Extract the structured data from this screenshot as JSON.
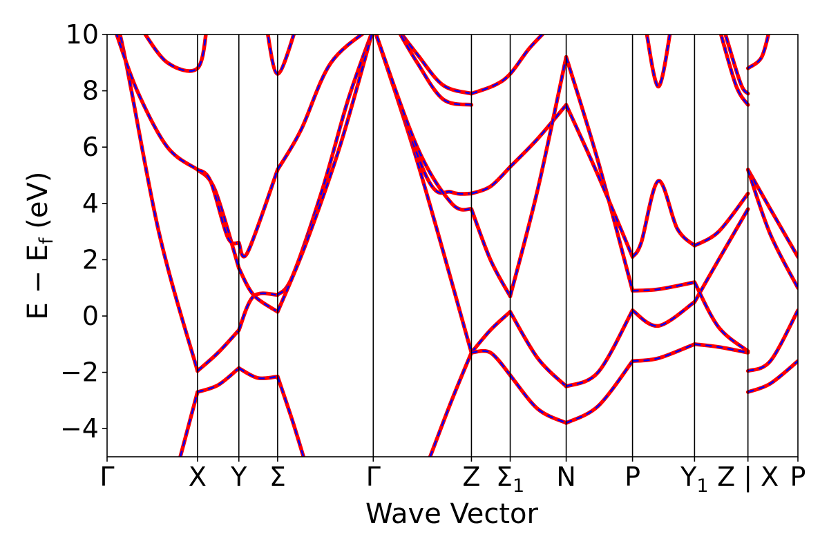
{
  "chart_data": {
    "type": "line",
    "title": "",
    "xlabel": "Wave Vector",
    "ylabel": "E − E_f (eV)",
    "ylabel_parts": {
      "main": "E − E",
      "sub": "f",
      "unit": " (eV)"
    },
    "ylim": [
      -5,
      10
    ],
    "xlim": [
      0,
      8.02
    ],
    "yticks": [
      -4,
      -2,
      0,
      2,
      4,
      6,
      8,
      10
    ],
    "ytick_labels": [
      "−4",
      "−2",
      "0",
      "2",
      "4",
      "6",
      "8",
      "10"
    ],
    "grid": false,
    "legend": "none",
    "kpoints": [
      {
        "label": "Γ",
        "x": 0
      },
      {
        "label": "X",
        "x": 1.05
      },
      {
        "label": "Y",
        "x": 1.53
      },
      {
        "label": "Σ",
        "x": 1.98
      },
      {
        "label": "Γ",
        "x": 3.09
      },
      {
        "label": "Z",
        "x": 4.23
      },
      {
        "label": "Σ",
        "sub": "1",
        "x": 4.68
      },
      {
        "label": "N",
        "x": 5.33
      },
      {
        "label": "P",
        "x": 6.1
      },
      {
        "label": "Y",
        "sub": "1",
        "x": 6.82
      },
      {
        "label": "Z | X",
        "x": 7.44
      },
      {
        "label": "P",
        "x": 8.02
      }
    ],
    "colors": {
      "dft": "#ff0000",
      "fit": "#0000ff",
      "frame": "#000000"
    },
    "series": [
      {
        "x": [
          0,
          0.15,
          0.6,
          1.05
        ],
        "y": [
          10.3,
          10,
          3,
          -1.95
        ]
      },
      {
        "x": [
          1.05,
          1.29,
          1.53
        ],
        "y": [
          -1.95,
          -1.3,
          -0.5
        ]
      },
      {
        "x": [
          1.53,
          1.7,
          1.98
        ],
        "y": [
          -0.5,
          0.7,
          0.75
        ]
      },
      {
        "x": [
          1.98,
          2.15,
          2.5,
          2.8,
          3.09
        ],
        "y": [
          0.75,
          1.4,
          4.5,
          7.7,
          10.2
        ]
      },
      {
        "x": [
          0.85,
          1.05
        ],
        "y": [
          -5,
          -2.7
        ]
      },
      {
        "x": [
          1.05,
          1.29,
          1.53
        ],
        "y": [
          -2.7,
          -2.45,
          -1.85
        ]
      },
      {
        "x": [
          1.53,
          1.75,
          1.98
        ],
        "y": [
          -1.85,
          -2.2,
          -2.15
        ]
      },
      {
        "x": [
          1.98,
          2.15,
          2.28
        ],
        "y": [
          -2.15,
          -3.7,
          -5
        ]
      },
      {
        "x": [
          0.1,
          0.35,
          0.7,
          1.05
        ],
        "y": [
          10.1,
          8,
          6,
          5.2
        ]
      },
      {
        "x": [
          1.05,
          1.25,
          1.53
        ],
        "y": [
          5.2,
          4.5,
          1.7
        ]
      },
      {
        "x": [
          1.53,
          1.7,
          1.98
        ],
        "y": [
          1.7,
          0.75,
          0.15
        ]
      },
      {
        "x": [
          1.98,
          2.3,
          2.7,
          3.09
        ],
        "y": [
          0.15,
          2.5,
          6,
          10.2
        ]
      },
      {
        "x": [
          1.05,
          1.2,
          1.4,
          1.53
        ],
        "y": [
          5.2,
          4.8,
          2.8,
          2.6
        ]
      },
      {
        "x": [
          1.53,
          1.63,
          1.98
        ],
        "y": [
          2.6,
          2.25,
          5.2
        ]
      },
      {
        "x": [
          1.98,
          2.25,
          2.6,
          3.09
        ],
        "y": [
          5.2,
          6.6,
          9,
          10.3
        ]
      },
      {
        "x": [
          0.4,
          0.7,
          1.05,
          1.16
        ],
        "y": [
          10.2,
          9,
          8.8,
          10.3
        ]
      },
      {
        "x": [
          1.85,
          1.98,
          2.2
        ],
        "y": [
          10.3,
          8.6,
          10.3
        ]
      },
      {
        "x": [
          3.09,
          3.6,
          4.23
        ],
        "y": [
          10.3,
          5.5,
          -1.3
        ]
      },
      {
        "x": [
          3.09,
          3.7,
          4.0,
          4.23
        ],
        "y": [
          10.3,
          5.0,
          4.4,
          4.35
        ]
      },
      {
        "x": [
          4.23,
          4.45,
          4.68
        ],
        "y": [
          4.35,
          4.6,
          5.3
        ]
      },
      {
        "x": [
          4.68,
          5.0,
          5.33
        ],
        "y": [
          5.3,
          6.3,
          7.5
        ]
      },
      {
        "x": [
          3.09,
          3.6,
          4.0,
          4.23
        ],
        "y": [
          10.3,
          6.0,
          4.0,
          3.8
        ]
      },
      {
        "x": [
          4.23,
          4.45,
          4.68
        ],
        "y": [
          3.8,
          2.0,
          0.7
        ]
      },
      {
        "x": [
          4.68,
          5.0,
          5.33
        ],
        "y": [
          0.7,
          4.5,
          9.2
        ]
      },
      {
        "x": [
          3.35,
          3.6,
          3.9,
          4.23
        ],
        "y": [
          10.3,
          9.3,
          8.2,
          7.9
        ]
      },
      {
        "x": [
          3.35,
          3.6,
          3.9,
          4.23
        ],
        "y": [
          10.3,
          9.0,
          7.7,
          7.5
        ]
      },
      {
        "x": [
          4.23,
          4.5,
          4.68,
          4.9,
          5.15
        ],
        "y": [
          7.9,
          8.2,
          8.6,
          9.5,
          10.3
        ]
      },
      {
        "x": [
          3.75,
          4.0,
          4.23
        ],
        "y": [
          -5,
          -3,
          -1.3
        ]
      },
      {
        "x": [
          4.23,
          4.45,
          4.68
        ],
        "y": [
          -1.3,
          -0.5,
          0.15
        ]
      },
      {
        "x": [
          4.68,
          5.0,
          5.33
        ],
        "y": [
          0.15,
          -1.5,
          -2.5
        ]
      },
      {
        "x": [
          5.33,
          5.7,
          6.1
        ],
        "y": [
          -2.5,
          -2.0,
          0.2
        ]
      },
      {
        "x": [
          4.23,
          4.45,
          4.68
        ],
        "y": [
          -1.3,
          -1.3,
          -2.1
        ]
      },
      {
        "x": [
          4.68,
          5.0,
          5.33
        ],
        "y": [
          -2.1,
          -3.3,
          -3.8
        ]
      },
      {
        "x": [
          5.33,
          5.7,
          6.1
        ],
        "y": [
          -3.8,
          -3.2,
          -1.6
        ]
      },
      {
        "x": [
          5.33,
          5.7,
          6.1
        ],
        "y": [
          9.2,
          5.5,
          0.9
        ]
      },
      {
        "x": [
          5.33,
          5.7,
          6.1
        ],
        "y": [
          7.5,
          5.0,
          2.1
        ]
      },
      {
        "x": [
          6.1,
          6.2,
          6.4,
          6.62,
          6.82
        ],
        "y": [
          2.1,
          2.6,
          4.8,
          3.1,
          2.5
        ]
      },
      {
        "x": [
          6.1,
          6.4,
          6.82
        ],
        "y": [
          0.2,
          -0.35,
          0.5
        ]
      },
      {
        "x": [
          6.1,
          6.4,
          6.82
        ],
        "y": [
          0.9,
          0.95,
          1.2
        ]
      },
      {
        "x": [
          6.82,
          7.1,
          7.44
        ],
        "y": [
          2.5,
          3.0,
          4.35
        ]
      },
      {
        "x": [
          6.82,
          7.1,
          7.44
        ],
        "y": [
          0.5,
          2.0,
          3.8
        ]
      },
      {
        "x": [
          6.1,
          6.4,
          6.82
        ],
        "y": [
          -1.6,
          -1.5,
          -1.0
        ]
      },
      {
        "x": [
          6.82,
          7.1,
          7.44
        ],
        "y": [
          -1.0,
          -1.1,
          -1.3
        ]
      },
      {
        "x": [
          6.82,
          7.1,
          7.44
        ],
        "y": [
          1.2,
          -0.4,
          -1.25
        ]
      },
      {
        "x": [
          6.25,
          6.4,
          6.55
        ],
        "y": [
          10.3,
          8.15,
          10.3
        ]
      },
      {
        "x": [
          7.1,
          7.3,
          7.44
        ],
        "y": [
          10.3,
          8.2,
          7.5
        ]
      },
      {
        "x": [
          7.15,
          7.35,
          7.44
        ],
        "y": [
          10.3,
          8.3,
          7.9
        ]
      },
      {
        "x": [
          7.44,
          7.7,
          8.02
        ],
        "y": [
          5.2,
          3.8,
          2.1
        ]
      },
      {
        "x": [
          7.44,
          7.7,
          8.02
        ],
        "y": [
          5.2,
          2.9,
          1.0
        ]
      },
      {
        "x": [
          7.44,
          7.7,
          8.02
        ],
        "y": [
          -1.95,
          -1.6,
          0.2
        ]
      },
      {
        "x": [
          7.44,
          7.7,
          8.02
        ],
        "y": [
          -2.7,
          -2.4,
          -1.6
        ]
      },
      {
        "x": [
          7.44,
          7.6,
          7.7
        ],
        "y": [
          8.8,
          9.2,
          10.3
        ]
      }
    ]
  }
}
